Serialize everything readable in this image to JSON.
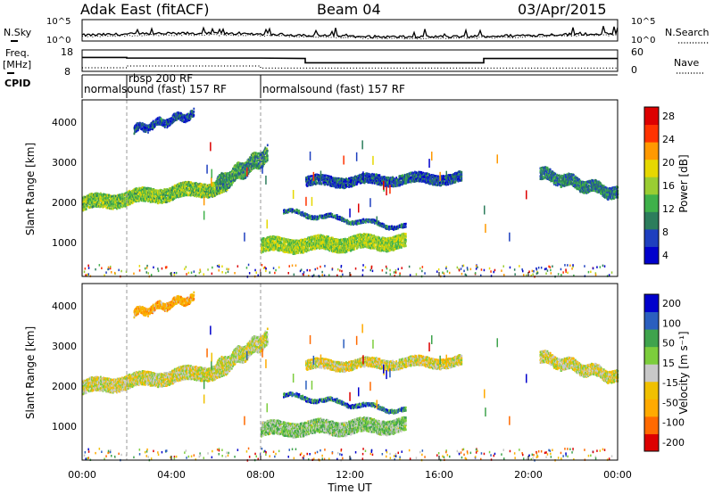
{
  "header": {
    "title": "Adak East (fitACF)",
    "beam": "Beam 04",
    "date": "03/Apr/2015"
  },
  "top_panels": {
    "nsky_label": "N.Sky",
    "nsearch_label": "N.Search",
    "noise_ticks_left": [
      "10^5",
      "10^0"
    ],
    "noise_ticks_right": [
      "10^5",
      "10^0"
    ],
    "freq_label_1": "Freq.",
    "freq_label_2": "[MHz]",
    "freq_ticks": [
      "18",
      "8"
    ],
    "nave_label": "Nave",
    "nave_ticks": [
      "60",
      "0"
    ],
    "cpid_label": "CPID"
  },
  "cpid_segments": [
    {
      "start_hour": 0.0,
      "text": "normalsound (fast) 157 RF"
    },
    {
      "start_hour": 2.0,
      "text": "rbsp 200 RF"
    },
    {
      "start_hour": 8.0,
      "text": "normalsound (fast) 157 RF"
    }
  ],
  "freq_series": {
    "name": "Freq.",
    "points": [
      [
        0,
        14.5
      ],
      [
        2.0,
        14.5
      ],
      [
        2.0,
        14.2
      ],
      [
        8.0,
        14.2
      ],
      [
        10.0,
        14.0
      ],
      [
        10.0,
        12.0
      ],
      [
        18.0,
        12.0
      ],
      [
        18.0,
        14.0
      ],
      [
        24.0,
        14.0
      ]
    ]
  },
  "nave_series": {
    "name": "Nave",
    "points": [
      [
        0,
        10
      ],
      [
        2.0,
        10
      ],
      [
        2.0,
        15
      ],
      [
        8.0,
        15
      ],
      [
        8.0,
        9
      ],
      [
        24.0,
        9
      ]
    ]
  },
  "power_panel": {
    "ylabel": "Slant Range [km]",
    "yticks": [
      "4000",
      "3000",
      "2000",
      "1000"
    ],
    "colorbar_label": "Power [dB]",
    "colorbar_ticks": [
      "28",
      "24",
      "20",
      "16",
      "12",
      "8",
      "4"
    ]
  },
  "velocity_panel": {
    "ylabel": "Slant Range [km]",
    "yticks": [
      "4000",
      "3000",
      "2000",
      "1000"
    ],
    "colorbar_label": "Velocity [m s⁻¹]",
    "colorbar_ticks": [
      "200",
      "100",
      "50",
      "15",
      "-15",
      "-50",
      "-100",
      "-200"
    ]
  },
  "xaxis": {
    "label": "Time UT",
    "ticks": [
      "00:00",
      "04:00",
      "08:00",
      "12:00",
      "16:00",
      "20:00",
      "00:00"
    ]
  },
  "colors": {
    "power_scale": [
      "#0000cc",
      "#1e3fbf",
      "#2c7d5c",
      "#3fb14a",
      "#9acd32",
      "#e6d800",
      "#ff9900",
      "#ff3300",
      "#dd0000"
    ],
    "velocity_scale": [
      "#dd0000",
      "#ff6a00",
      "#ffaa00",
      "#f0c000",
      "#c8c8c8",
      "#7ccd3c",
      "#3fa34d",
      "#2b5fbf",
      "#0000cc"
    ]
  },
  "chart_data": {
    "type": "heatmap",
    "x_range_hours": [
      0,
      24
    ],
    "y_range_km": [
      180,
      4600
    ],
    "echo_bands": [
      {
        "name": "band-a",
        "start_hour": 0.0,
        "end_hour": 6.5,
        "range_km_start": 2050,
        "range_km_end": 2500,
        "thickness_km": 350,
        "power_level": 0.45,
        "velocity_level": 0.48
      },
      {
        "name": "band-b",
        "start_hour": 6.0,
        "end_hour": 8.3,
        "range_km_start": 2500,
        "range_km_end": 3300,
        "thickness_km": 400,
        "power_level": 0.3,
        "velocity_level": 0.5
      },
      {
        "name": "band-c",
        "start_hour": 8.0,
        "end_hour": 14.5,
        "range_km_start": 1000,
        "range_km_end": 1100,
        "thickness_km": 350,
        "power_level": 0.5,
        "velocity_level": 0.62
      },
      {
        "name": "band-d",
        "start_hour": 9.0,
        "end_hour": 14.5,
        "range_km_start": 1850,
        "range_km_end": 1450,
        "thickness_km": 90,
        "power_level": 0.2,
        "velocity_level": 0.85
      },
      {
        "name": "band-e",
        "start_hour": 2.3,
        "end_hour": 5.0,
        "range_km_start": 3900,
        "range_km_end": 4300,
        "thickness_km": 200,
        "power_level": 0.15,
        "velocity_level": 0.3
      },
      {
        "name": "band-f",
        "start_hour": 10.0,
        "end_hour": 17.0,
        "range_km_start": 2600,
        "range_km_end": 2700,
        "thickness_km": 250,
        "power_level": 0.15,
        "velocity_level": 0.45
      },
      {
        "name": "band-g",
        "start_hour": 20.5,
        "end_hour": 24.0,
        "range_km_start": 2800,
        "range_km_end": 2300,
        "thickness_km": 300,
        "power_level": 0.25,
        "velocity_level": 0.48
      }
    ]
  }
}
